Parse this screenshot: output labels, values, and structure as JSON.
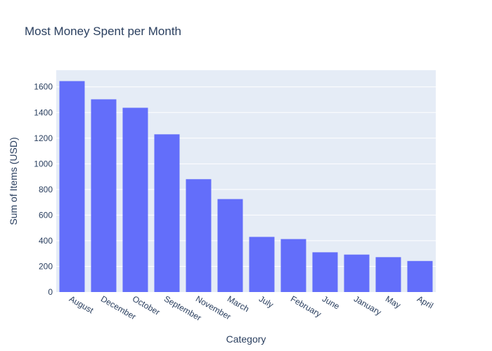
{
  "chart_data": {
    "type": "bar",
    "title": "Most Money Spent per Month",
    "xlabel": "Category",
    "ylabel": "Sum of Items (USD)",
    "categories": [
      "August",
      "December",
      "October",
      "September",
      "November",
      "March",
      "July",
      "February",
      "June",
      "January",
      "May",
      "April"
    ],
    "values": [
      1645,
      1503,
      1437,
      1230,
      880,
      725,
      430,
      413,
      310,
      292,
      272,
      242
    ],
    "ylim": [
      0,
      1730
    ],
    "yticks": [
      0,
      200,
      400,
      600,
      800,
      1000,
      1200,
      1400,
      1600
    ],
    "grid": true,
    "colors": {
      "bar": "#636efa",
      "plot_bg": "#e5ecf6",
      "grid": "#ffffff",
      "text": "#2a3f5f"
    }
  }
}
